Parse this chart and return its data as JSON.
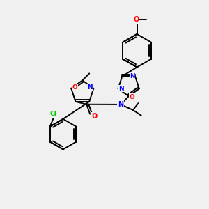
{
  "background_color": "#f0f0f0",
  "bond_color": "#000000",
  "atom_colors": {
    "N": "#0000FF",
    "O": "#FF0000",
    "Cl": "#00CC00",
    "C": "#000000"
  },
  "figsize": [
    3.0,
    3.0
  ],
  "dpi": 100
}
